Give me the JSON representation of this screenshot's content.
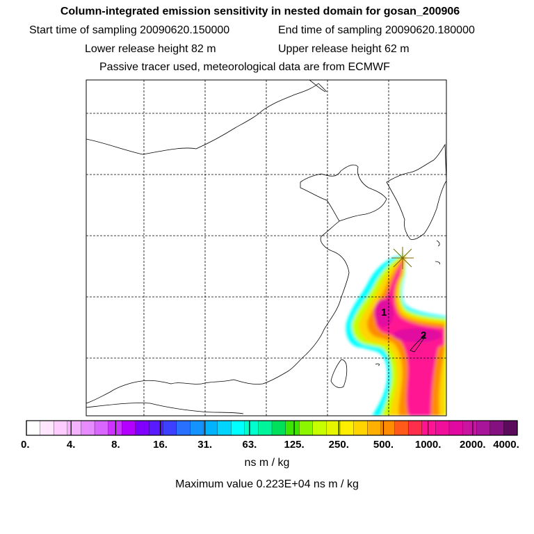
{
  "header": {
    "title": "Column-integrated emission sensitivity in nested domain for gosan_200906",
    "start_label": "Start time of sampling 20090620.150000",
    "end_label": "End time of sampling 20090620.180000",
    "lower_label": "Lower release height   82 m",
    "upper_label": "Upper release height   62 m",
    "tracer_note": "Passive tracer used, meteorological data are from ECMWF"
  },
  "markers": [
    {
      "label": "1"
    },
    {
      "label": "2"
    }
  ],
  "legend": {
    "colors": [
      "#ffffff",
      "#ffe6ff",
      "#ffccff",
      "#f5b3ff",
      "#e68cff",
      "#d966ff",
      "#cc33ff",
      "#b300ff",
      "#7f00ff",
      "#5a1aff",
      "#3d40ff",
      "#2970ff",
      "#1493ff",
      "#00b3ff",
      "#00d4ff",
      "#00ffff",
      "#00ffcc",
      "#00f59b",
      "#00e05a",
      "#3de600",
      "#8cf500",
      "#c8ff00",
      "#e6f500",
      "#ffee00",
      "#ffd400",
      "#ffb000",
      "#ff8c00",
      "#ff5a1a",
      "#ff2e4a",
      "#ff1493",
      "#f00f9b",
      "#e00aa0",
      "#c814a0",
      "#a8149a",
      "#851080",
      "#5c0a5c"
    ],
    "ticks": [
      "0.",
      "4.",
      "8.",
      "16.",
      "31.",
      "63.",
      "125.",
      "250.",
      "500.",
      "1000.",
      "2000.",
      "4000."
    ],
    "unit": "ns m / kg"
  },
  "max_value": "Maximum value  0.223E+04 ns m / kg"
}
